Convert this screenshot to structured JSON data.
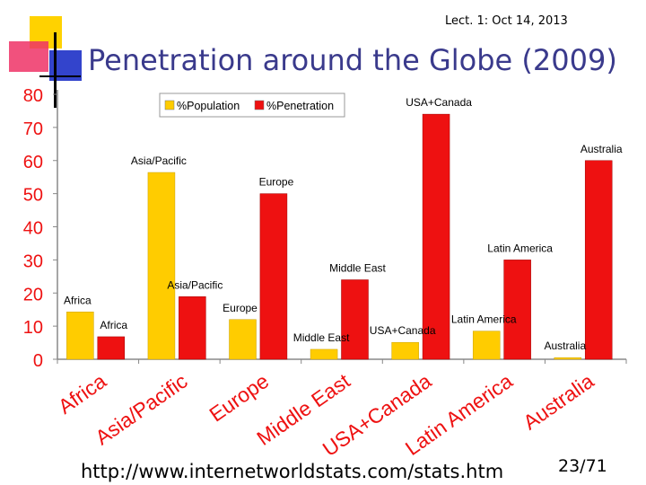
{
  "header_note": "Lect. 1: Oct 14, 2013",
  "title": "Penetration around the Globe (2009)",
  "footer_url": "http://www.internetworldstats.com/stats.htm",
  "page_number": "23/71",
  "colors": {
    "population": "#ffcc00",
    "penetration": "#ee1111",
    "title": "#3a3a8c",
    "accent_yellow": "#ffd200",
    "accent_pink": "#ee3366",
    "accent_blue": "#3344cc"
  },
  "chart_data": {
    "type": "bar",
    "categories": [
      "Africa",
      "Asia/Pacific",
      "Europe",
      "Middle East",
      "USA+Canada",
      "Latin America",
      "Australia"
    ],
    "series": [
      {
        "name": "%Population",
        "color": "#ffcc00",
        "values": [
          14.3,
          56.4,
          12.0,
          3.0,
          5.1,
          8.5,
          0.5
        ]
      },
      {
        "name": "%Penetration",
        "color": "#ee1111",
        "values": [
          6.8,
          18.9,
          50.0,
          24.0,
          74.0,
          30.0,
          60.0
        ]
      }
    ],
    "ylim": [
      0,
      80
    ],
    "yticks": [
      "0",
      "10",
      "20",
      "30",
      "40",
      "50",
      "60",
      "70",
      "80"
    ],
    "legend": "top-left",
    "grid": false
  }
}
